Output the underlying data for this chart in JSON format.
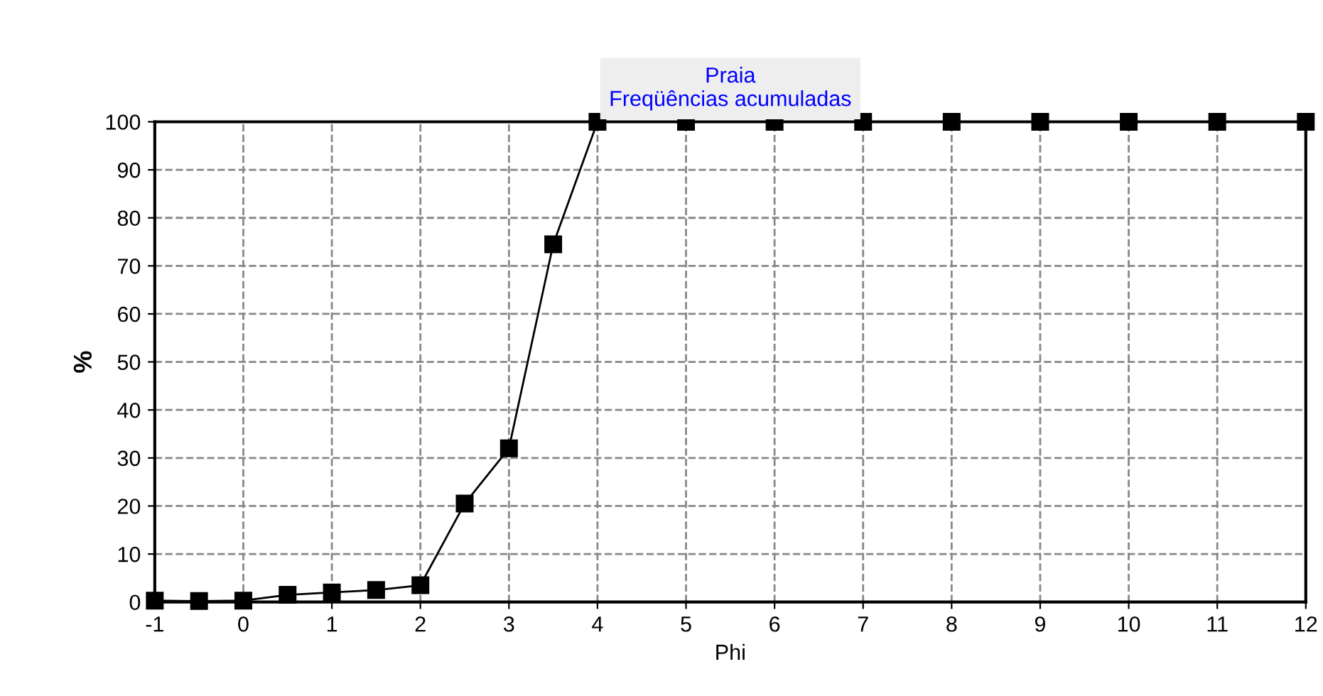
{
  "chart_data": {
    "type": "line",
    "title": "Praia\nFreqüências acumuladas",
    "xlabel": "Phi",
    "ylabel": "%",
    "x": [
      -1,
      -0.5,
      0,
      0.5,
      1,
      1.5,
      2,
      2.5,
      3,
      3.5,
      4,
      5,
      6,
      7,
      8,
      9,
      10,
      11,
      12
    ],
    "series": [
      {
        "color": "#000000",
        "values": [
          0.3,
          0.2,
          0.3,
          1.5,
          2,
          2.5,
          3.5,
          20.5,
          32,
          74.5,
          100,
          100,
          100,
          100,
          100,
          100,
          100,
          100,
          100
        ]
      }
    ],
    "xlim": [
      -1,
      12
    ],
    "xticks": [
      -1,
      0,
      1,
      2,
      3,
      4,
      5,
      6,
      7,
      8,
      9,
      10,
      11,
      12
    ],
    "ylim": [
      0,
      100
    ],
    "yticks": [
      0,
      10,
      20,
      30,
      40,
      50,
      60,
      70,
      80,
      90,
      100
    ],
    "grid": true,
    "legend": false,
    "marker": "square",
    "line_style": "solid"
  }
}
